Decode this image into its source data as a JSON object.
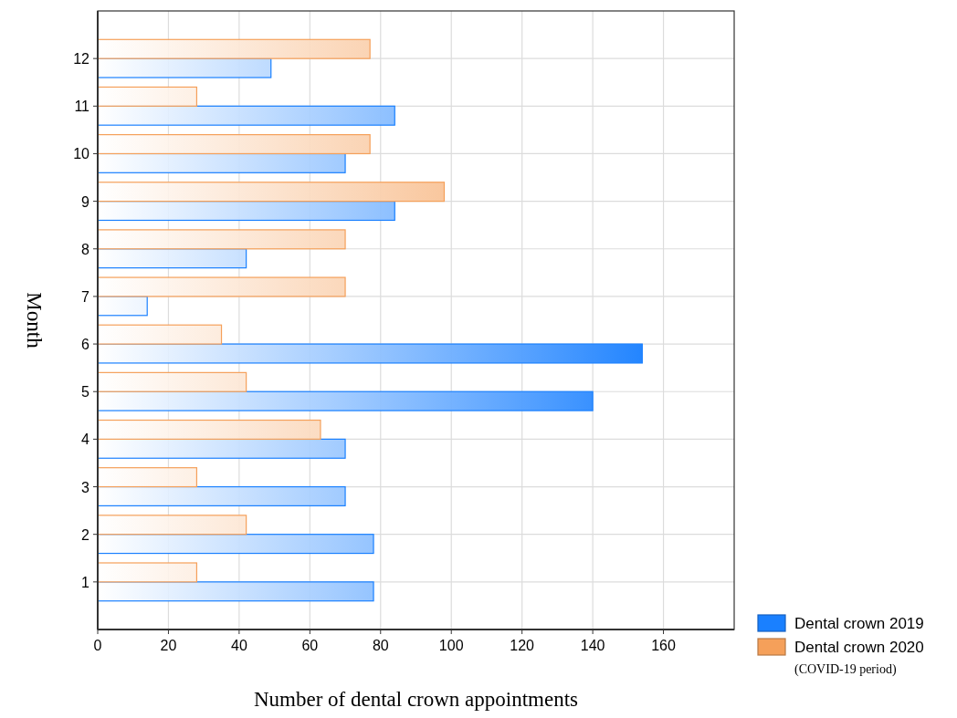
{
  "chart_data": {
    "type": "bar",
    "orientation": "horizontal",
    "xlabel": "Number of dental crown appointments",
    "ylabel": "Month",
    "categories": [
      "12",
      "11",
      "10",
      "9",
      "8",
      "7",
      "6",
      "5",
      "4",
      "3",
      "2",
      "1"
    ],
    "series": [
      {
        "name": "Dental crown 2019",
        "color": "#1a80ff",
        "values": [
          49,
          84,
          70,
          84,
          42,
          14,
          154,
          140,
          70,
          70,
          78,
          78
        ]
      },
      {
        "name": "Dental crown 2020",
        "color": "#f5a05a",
        "values": [
          77,
          28,
          77,
          98,
          70,
          70,
          35,
          42,
          63,
          28,
          42,
          28
        ]
      }
    ],
    "xlim": [
      0,
      180
    ],
    "xticks": [
      0,
      20,
      40,
      60,
      80,
      100,
      120,
      140,
      160
    ],
    "grid": true,
    "legend": "bottom right",
    "annotations": [
      "(COVID-19 period)"
    ]
  }
}
